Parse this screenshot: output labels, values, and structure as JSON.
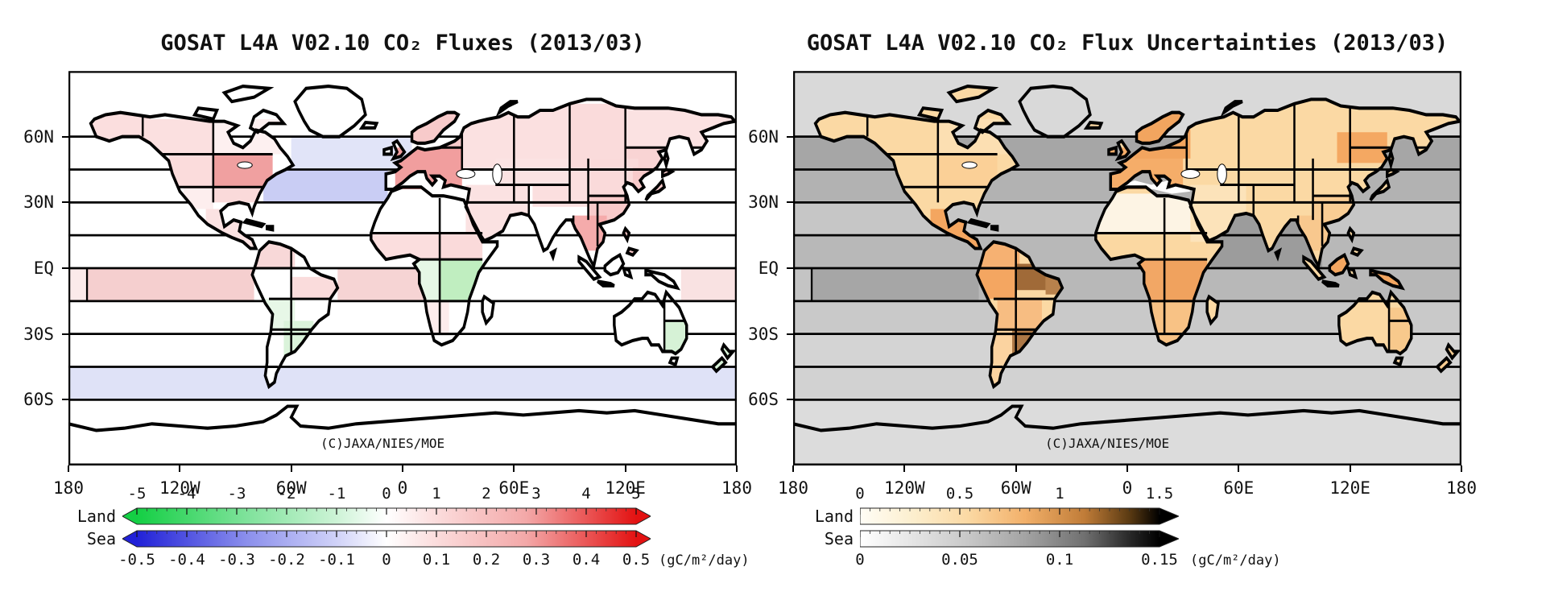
{
  "figure": {
    "background": "#ffffff"
  },
  "panels": [
    {
      "title": "GOSAT L4A V02.10 CO₂ Fluxes (2013/03)",
      "copyright": "(C)JAXA/NIES/MOE",
      "lat_labels": [
        "60N",
        "30N",
        "EQ",
        "30S",
        "60S"
      ],
      "lon_labels": [
        "180",
        "120W",
        "60W",
        "0",
        "60E",
        "120E",
        "180"
      ],
      "legend": {
        "unit": "(gC/m²/day)",
        "land": {
          "label": "Land",
          "ticks": [
            "-5",
            "-4",
            "-3",
            "-2",
            "-1",
            "0",
            "1",
            "2",
            "3",
            "4",
            "5"
          ],
          "gradient": [
            "#14cf44",
            "#7fe29b",
            "#cdf3d6",
            "#ffffff",
            "#fbdcdc",
            "#f3a8a8",
            "#e31212"
          ]
        },
        "sea": {
          "label": "Sea",
          "ticks": [
            "-0.5",
            "-0.4",
            "-0.3",
            "-0.2",
            "-0.1",
            "0",
            "0.1",
            "0.2",
            "0.3",
            "0.4",
            "0.5"
          ],
          "gradient": [
            "#2121d8",
            "#8b8fec",
            "#d0d2f8",
            "#ffffff",
            "#fbdcdc",
            "#f3a8a8",
            "#e31212"
          ]
        }
      },
      "colors": {
        "land_base": "#ffffff",
        "polar": "#ffffff",
        "lakes": "#ffffff",
        "mediterranean": "#ffffff",
        "ocean": {
          "base": "#ffffff",
          "natl_upper": "#e1e4f8",
          "natl_lower": "#c9cdf4",
          "eq_pacific_w": "#fbeaea",
          "eq_pacific": "#f5cfcf",
          "eq_atlantic": "#f6d4d4",
          "eq_wpacific": "#f9e2e2",
          "southern_45_60s": "#dfe2f7"
        },
        "regions": {
          "alaska": "#fbdede",
          "canada_w": "#fbe0e0",
          "canada_e": "#fdf0f0",
          "us_w": "#fbdcdc",
          "us_e": "#f0a0a0",
          "us_se": "#fadada",
          "us_sw": "#fdeeee",
          "mexico_ca": "#fbe2e2",
          "sam_nw": "#f8d8d8",
          "sam_e": "#fadcdc",
          "sam_sw": "#e7f7e7",
          "sam_se": "#daf3da",
          "europe": "#f19e9e",
          "scandinavia": "#f7caca",
          "w_russia": "#fbe1e1",
          "c_siberia": "#fbe0e0",
          "e_siberia": "#fadbdb",
          "ne_siberia": "#fbe2e2",
          "far_east": "#f9d4d4",
          "tibet": "#fbdfdf",
          "kazakhstan": "#fbe3e3",
          "middle_east": "#fbe2e2",
          "n_china": "#fadada",
          "s_china": "#f8caca",
          "indochina": "#f5abab",
          "japan_korea": "#f8caca",
          "philippines": "#f7c6c6",
          "sahel_w": "#fbdede",
          "sahel_e": "#fadada",
          "eq_africa_w": "#e6f7e6",
          "eq_africa_e": "#c0eec0",
          "s_africa_w": "#fdecec",
          "australia_se": "#d6f2d6",
          "new_zealand": "#d9f3d9"
        }
      }
    },
    {
      "title": "GOSAT L4A V02.10 CO₂ Flux Uncertainties (2013/03)",
      "copyright": "(C)JAXA/NIES/MOE",
      "lat_labels": [
        "60N",
        "30N",
        "EQ",
        "30S",
        "60S"
      ],
      "lon_labels": [
        "180",
        "120W",
        "60W",
        "0",
        "60E",
        "120E",
        "180"
      ],
      "legend": {
        "unit": "(gC/m²/day)",
        "land": {
          "label": "Land",
          "ticks": [
            "0",
            "0.5",
            "1",
            "1.5"
          ],
          "gradient": [
            "#fffdf6",
            "#fceecd",
            "#fbd9a4",
            "#f2b06a",
            "#c07c38",
            "#5a3a12",
            "#000000"
          ]
        },
        "sea": {
          "label": "Sea",
          "ticks": [
            "0",
            "0.05",
            "0.1",
            "0.15"
          ],
          "gradient": [
            "#ffffff",
            "#e4e4e4",
            "#c8c8c8",
            "#a4a4a4",
            "#707070",
            "#282828",
            "#000000"
          ]
        }
      },
      "colors": {
        "land_base": "#fbd9a4",
        "polar": "#ffffff",
        "lakes": "#ffffff",
        "mediterranean": "#ffffff",
        "ocean": {
          "base": "#dcdcdc",
          "arctic": "#d9d9d9",
          "b45_60n": "#a6a6a6",
          "b30_45n": "#b2b2b2",
          "b15_30n": "#c6c6c6",
          "b0_15n": "#b8b8b8",
          "indian_n": "#9c9c9c",
          "b0_15s": "#b8b8b8",
          "eq_pacific_w": "#c4c4c4",
          "eq_pacific": "#a6a6a6",
          "b15_30s": "#c9c9c9",
          "b30_45s": "#d4d4d4",
          "b45_60s": "#d2d2d2",
          "b60_90s": "#dcdcdc"
        },
        "regions": {
          "canada_e": "#fcdfb2",
          "us_e": "#fbd097",
          "mexico_ca": "#f4a660",
          "sam_nw": "#f6b172",
          "sam_w": "#f4a661",
          "sam_ne": "#a06a38",
          "sam_e": "#b8814c",
          "sam_c": "#f7bd82",
          "sam_s": "#fbd3a0",
          "sam_se": "#ad7846",
          "sahara": "#fdf4e4",
          "sahel": "#fbd8a2",
          "eq_africa_w": "#f2a765",
          "eq_africa_e": "#f0a25e",
          "s_africa": "#f8c285",
          "europe": "#f5ad69",
          "scandinavia": "#f2a55f",
          "e_siberia_mid": "#f4a862",
          "middle_east": "#fce3ba",
          "indochina": "#f8c88e",
          "s_china": "#f9cd94",
          "borneo": "#f3a660",
          "new_guinea": "#f3a660",
          "australia_e": "#f8c98c",
          "new_zealand": "#f8cd92"
        }
      }
    }
  ]
}
